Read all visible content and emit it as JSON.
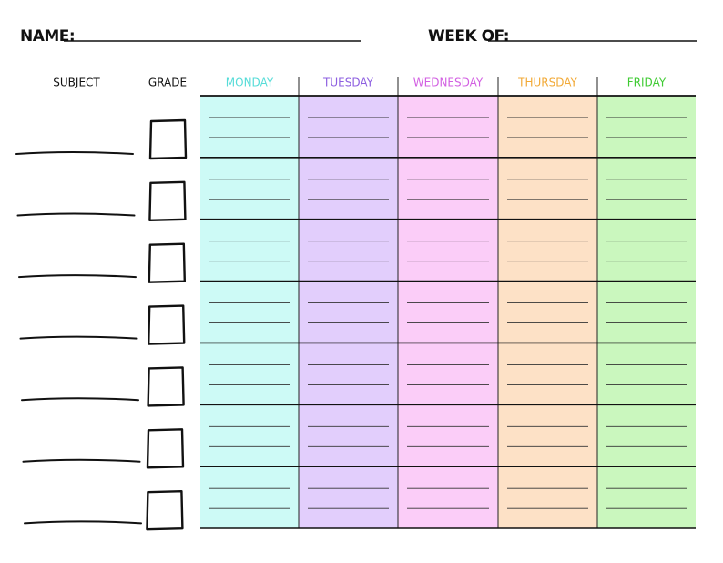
{
  "header": {
    "name_label": "NAME:",
    "week_label": "WEEK OF:"
  },
  "columns": {
    "subject": "SUBJECT",
    "grade": "GRADE"
  },
  "days": [
    {
      "name": "MONDAY",
      "color": "#56dcd8",
      "background": "#cdfaf6"
    },
    {
      "name": "TUESDAY",
      "color": "#8d5fe0",
      "background": "#e2cefc"
    },
    {
      "name": "WEDNESDAY",
      "color": "#d25fe2",
      "background": "#fbcdf8"
    },
    {
      "name": "THURSDAY",
      "color": "#f2a936",
      "background": "#fde1c6"
    },
    {
      "name": "FRIDAY",
      "color": "#3fcb33",
      "background": "#caf7be"
    }
  ]
}
